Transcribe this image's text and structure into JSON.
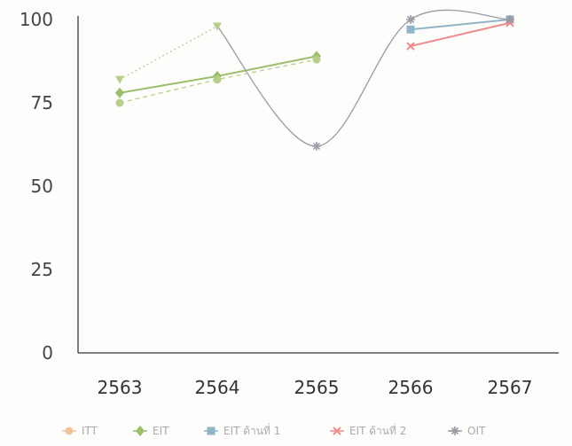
{
  "chart_data": {
    "type": "line",
    "categories": [
      "2563",
      "2564",
      "2565",
      "2566",
      "2567"
    ],
    "ylim": [
      0,
      100
    ],
    "yticks": [
      0,
      25,
      50,
      75,
      100
    ],
    "grid": false,
    "legend_position": "bottom",
    "series": [
      {
        "name": "ITT",
        "color": "#f0c49a",
        "marker": "circle",
        "style": "solid",
        "values": [
          null,
          null,
          null,
          null,
          null
        ]
      },
      {
        "name": "EIT",
        "color": "#9bbf6a",
        "marker": "diamond",
        "style": "solid",
        "values": [
          78,
          83,
          89,
          null,
          null
        ]
      },
      {
        "name": "EIT ด้านที่ 1",
        "color": "#8fb5c9",
        "marker": "square",
        "style": "solid",
        "values": [
          null,
          null,
          null,
          97,
          100
        ]
      },
      {
        "name": "EIT ด้านที่ 2",
        "color": "#f08a8a",
        "marker": "x",
        "style": "solid",
        "values": [
          null,
          null,
          null,
          92,
          99
        ]
      },
      {
        "name": "OIT",
        "color": "#9a9aa6",
        "marker": "star",
        "style": "smooth",
        "values": [
          null,
          null,
          62,
          100,
          100
        ]
      },
      {
        "name": "",
        "color": "#b8cf8c",
        "marker": "triangle-down",
        "style": "dotted-smooth",
        "legend": false,
        "values": [
          82,
          98,
          null,
          null,
          null
        ]
      },
      {
        "name": "",
        "color": "#b8cf8c",
        "marker": "circle",
        "style": "dashed",
        "legend": false,
        "values": [
          75,
          82,
          88,
          null,
          null
        ]
      }
    ]
  }
}
